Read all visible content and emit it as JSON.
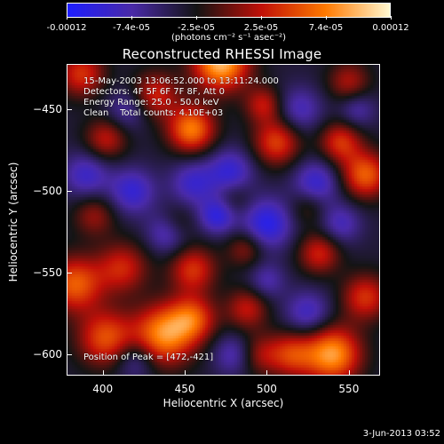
{
  "colorbar": {
    "tick_labels": [
      "-0.00012",
      "-7.4e-05",
      "-2.5e-05",
      "2.5e-05",
      "7.4e-05",
      "0.00012"
    ],
    "units": "(photons cm⁻² s⁻¹ asec⁻²)",
    "colors": [
      "#1e1eff",
      "#4a2aa8",
      "#141414",
      "#c01008",
      "#ff7a00",
      "#fff8d0"
    ]
  },
  "chart_data": {
    "type": "heatmap",
    "title": "Reconstructed RHESSI Image",
    "xlabel": "Heliocentric X (arcsec)",
    "ylabel": "Heliocentric Y (arcsec)",
    "xlim": [
      378,
      569
    ],
    "ylim": [
      -613,
      -422
    ],
    "x_ticks": [
      "400",
      "450",
      "500",
      "550"
    ],
    "y_ticks": [
      "-450",
      "-500",
      "-550",
      "-600"
    ],
    "colorbar_range": [
      -0.00012,
      0.00012
    ],
    "blobs": [
      {
        "x": 472,
        "y": -421,
        "v": 1.0,
        "r": 12
      },
      {
        "x": 437,
        "y": -588,
        "v": 0.85,
        "r": 13
      },
      {
        "x": 454,
        "y": -462,
        "v": 0.8,
        "r": 10
      },
      {
        "x": 387,
        "y": -428,
        "v": 0.55,
        "r": 10
      },
      {
        "x": 402,
        "y": -468,
        "v": 0.45,
        "r": 9
      },
      {
        "x": 432,
        "y": -441,
        "v": 0.5,
        "r": 10
      },
      {
        "x": 506,
        "y": -470,
        "v": 0.6,
        "r": 10
      },
      {
        "x": 498,
        "y": -447,
        "v": 0.45,
        "r": 8
      },
      {
        "x": 383,
        "y": -557,
        "v": 0.7,
        "r": 12
      },
      {
        "x": 412,
        "y": -547,
        "v": 0.5,
        "r": 11
      },
      {
        "x": 455,
        "y": -548,
        "v": 0.55,
        "r": 10
      },
      {
        "x": 402,
        "y": -590,
        "v": 0.65,
        "r": 12
      },
      {
        "x": 455,
        "y": -578,
        "v": 0.6,
        "r": 10
      },
      {
        "x": 488,
        "y": -572,
        "v": 0.45,
        "r": 9
      },
      {
        "x": 540,
        "y": -600,
        "v": 0.9,
        "r": 12
      },
      {
        "x": 515,
        "y": -600,
        "v": 0.55,
        "r": 10
      },
      {
        "x": 560,
        "y": -565,
        "v": 0.55,
        "r": 10
      },
      {
        "x": 532,
        "y": -538,
        "v": 0.5,
        "r": 9
      },
      {
        "x": 560,
        "y": -490,
        "v": 0.7,
        "r": 10
      },
      {
        "x": 545,
        "y": -470,
        "v": 0.55,
        "r": 9
      },
      {
        "x": 550,
        "y": -433,
        "v": 0.4,
        "r": 9
      },
      {
        "x": 395,
        "y": -515,
        "v": 0.35,
        "r": 9
      },
      {
        "x": 445,
        "y": -520,
        "v": 0.3,
        "r": 8
      },
      {
        "x": 480,
        "y": -505,
        "v": 0.2,
        "r": 8
      },
      {
        "x": 487,
        "y": -535,
        "v": 0.35,
        "r": 8
      },
      {
        "x": 525,
        "y": -510,
        "v": 0.25,
        "r": 8
      },
      {
        "x": 495,
        "y": -600,
        "v": 0.35,
        "r": 9
      },
      {
        "x": 390,
        "y": -490,
        "v": -0.4,
        "r": 10
      },
      {
        "x": 418,
        "y": -500,
        "v": -0.45,
        "r": 10
      },
      {
        "x": 500,
        "y": -520,
        "v": -0.55,
        "r": 11
      },
      {
        "x": 478,
        "y": -488,
        "v": -0.45,
        "r": 10
      },
      {
        "x": 455,
        "y": -495,
        "v": -0.4,
        "r": 10
      },
      {
        "x": 530,
        "y": -495,
        "v": -0.45,
        "r": 10
      },
      {
        "x": 440,
        "y": -525,
        "v": -0.45,
        "r": 9
      },
      {
        "x": 520,
        "y": -450,
        "v": -0.35,
        "r": 10
      },
      {
        "x": 470,
        "y": -515,
        "v": -0.5,
        "r": 8
      },
      {
        "x": 545,
        "y": -520,
        "v": -0.35,
        "r": 9
      },
      {
        "x": 525,
        "y": -575,
        "v": -0.4,
        "r": 10
      },
      {
        "x": 480,
        "y": -600,
        "v": -0.35,
        "r": 9
      },
      {
        "x": 420,
        "y": -603,
        "v": -0.35,
        "r": 9
      },
      {
        "x": 415,
        "y": -450,
        "v": -0.3,
        "r": 9
      },
      {
        "x": 555,
        "y": -450,
        "v": -0.3,
        "r": 8
      },
      {
        "x": 500,
        "y": -555,
        "v": -0.3,
        "r": 8
      }
    ]
  },
  "annotations": {
    "time_line": "15-May-2003 13:06:52.000 to 13:11:24.000",
    "detectors_line": "Detectors: 4F 5F 6F 7F 8F, Att 0",
    "energy_line": "Energy Range: 25.0 - 50.0 keV",
    "clean_line": "Clean    Total counts: 4.10E+03",
    "peak_line": "Position of Peak = [472,-421]"
  },
  "footer": {
    "date": "3-Jun-2013 03:52"
  }
}
